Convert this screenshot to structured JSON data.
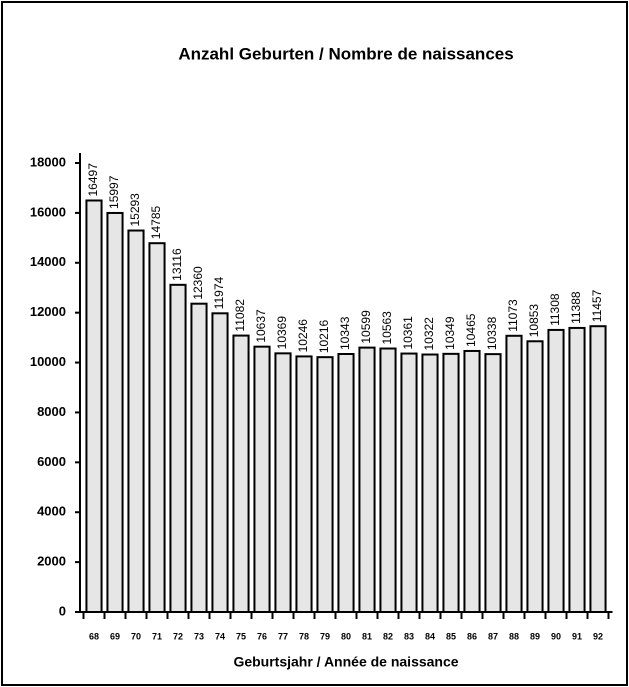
{
  "chart_data": {
    "type": "bar",
    "title": "Anzahl Geburten / Nombre de naissances",
    "x_label": "Geburtsjahr / Année de naissance",
    "categories": [
      "68",
      "69",
      "70",
      "71",
      "72",
      "73",
      "74",
      "75",
      "76",
      "77",
      "78",
      "79",
      "80",
      "81",
      "82",
      "83",
      "84",
      "85",
      "86",
      "87",
      "88",
      "89",
      "90",
      "91",
      "92"
    ],
    "values": [
      16497,
      15997,
      15293,
      14785,
      13116,
      12360,
      11974,
      11082,
      10637,
      10369,
      10246,
      10216,
      10343,
      10599,
      10563,
      10361,
      10322,
      10349,
      10465,
      10338,
      11073,
      10853,
      11308,
      11388,
      11457
    ],
    "color": "#e6e6e6",
    "ylim": [
      0,
      18000
    ],
    "yticks": [
      0,
      2000,
      4000,
      6000,
      8000,
      10000,
      12000,
      14000,
      16000,
      18000
    ],
    "grid": false
  }
}
